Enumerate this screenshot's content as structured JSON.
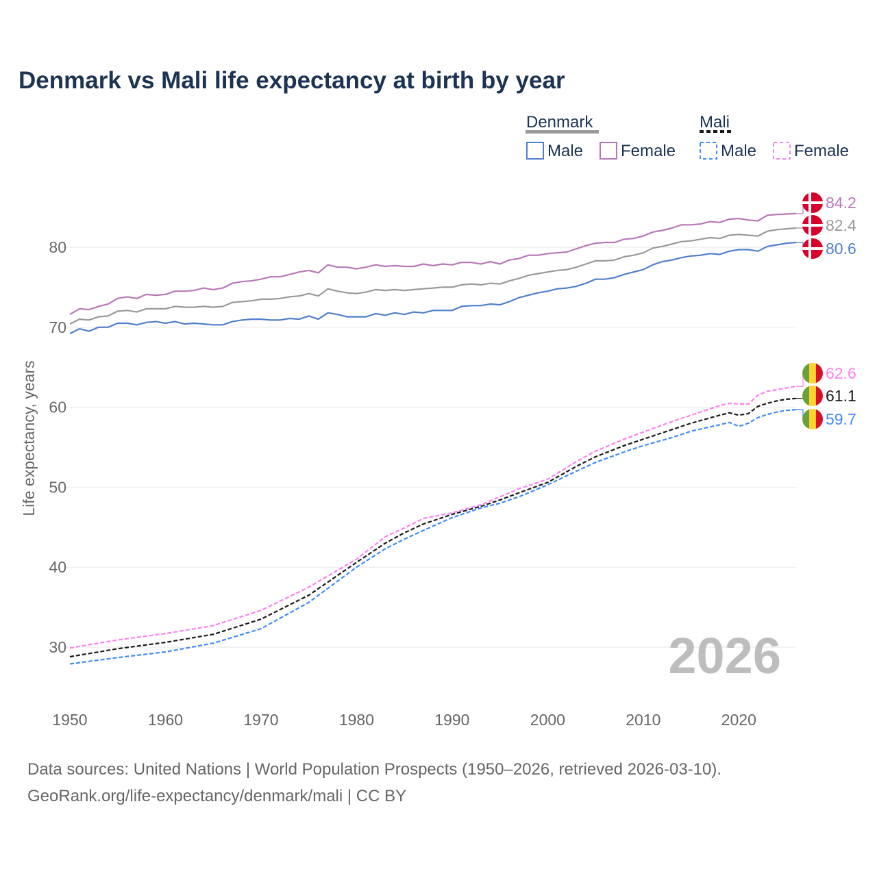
{
  "chart_data": {
    "type": "line",
    "title": "Denmark vs Mali life expectancy at birth by year",
    "xlabel": "",
    "ylabel": "Life expectancy, years",
    "xlim": [
      1950,
      2026
    ],
    "ylim": [
      24,
      87
    ],
    "x_ticks": [
      "1950",
      "1960",
      "1970",
      "1980",
      "1990",
      "2000",
      "2010",
      "2020"
    ],
    "y_ticks": [
      "30",
      "40",
      "50",
      "60",
      "70",
      "80"
    ],
    "grid": true,
    "year_watermark": "2026",
    "legend": {
      "placement": "top-right",
      "groups": [
        {
          "name": "Denmark",
          "items": [
            "Male",
            "Female"
          ]
        },
        {
          "name": "Mali",
          "items": [
            "Male",
            "Female"
          ]
        }
      ]
    },
    "series": [
      {
        "name": "Denmark Female",
        "color": "#b877b8",
        "dashed": false,
        "end_label": "84.2",
        "flag": "denmark",
        "x": [
          1950,
          1951,
          1952,
          1953,
          1954,
          1955,
          1956,
          1957,
          1958,
          1959,
          1960,
          1961,
          1962,
          1963,
          1964,
          1965,
          1966,
          1967,
          1968,
          1969,
          1970,
          1971,
          1972,
          1973,
          1974,
          1975,
          1976,
          1977,
          1978,
          1979,
          1980,
          1981,
          1982,
          1983,
          1984,
          1985,
          1986,
          1987,
          1988,
          1989,
          1990,
          1991,
          1992,
          1993,
          1994,
          1995,
          1996,
          1997,
          1998,
          1999,
          2000,
          2001,
          2002,
          2003,
          2004,
          2005,
          2006,
          2007,
          2008,
          2009,
          2010,
          2011,
          2012,
          2013,
          2014,
          2015,
          2016,
          2017,
          2018,
          2019,
          2020,
          2021,
          2022,
          2023,
          2024,
          2025,
          2026
        ],
        "values": [
          71.6,
          72.3,
          72.2,
          72.6,
          72.9,
          73.6,
          73.8,
          73.6,
          74.1,
          74.0,
          74.1,
          74.5,
          74.5,
          74.6,
          74.9,
          74.7,
          74.9,
          75.5,
          75.7,
          75.8,
          76.0,
          76.3,
          76.3,
          76.6,
          76.9,
          77.1,
          76.8,
          77.8,
          77.5,
          77.5,
          77.3,
          77.5,
          77.8,
          77.6,
          77.7,
          77.6,
          77.6,
          77.9,
          77.7,
          77.9,
          77.8,
          78.1,
          78.1,
          77.9,
          78.2,
          77.9,
          78.4,
          78.6,
          79.0,
          79.0,
          79.2,
          79.3,
          79.4,
          79.8,
          80.2,
          80.5,
          80.6,
          80.6,
          81.0,
          81.1,
          81.4,
          81.9,
          82.1,
          82.4,
          82.8,
          82.8,
          82.9,
          83.2,
          83.1,
          83.5,
          83.6,
          83.4,
          83.3,
          84.0,
          84.1,
          84.15,
          84.2
        ]
      },
      {
        "name": "Denmark",
        "color": "#999999",
        "dashed": false,
        "end_label": "82.4",
        "flag": "denmark",
        "x": [
          1950,
          1951,
          1952,
          1953,
          1954,
          1955,
          1956,
          1957,
          1958,
          1959,
          1960,
          1961,
          1962,
          1963,
          1964,
          1965,
          1966,
          1967,
          1968,
          1969,
          1970,
          1971,
          1972,
          1973,
          1974,
          1975,
          1976,
          1977,
          1978,
          1979,
          1980,
          1981,
          1982,
          1983,
          1984,
          1985,
          1986,
          1987,
          1988,
          1989,
          1990,
          1991,
          1992,
          1993,
          1994,
          1995,
          1996,
          1997,
          1998,
          1999,
          2000,
          2001,
          2002,
          2003,
          2004,
          2005,
          2006,
          2007,
          2008,
          2009,
          2010,
          2011,
          2012,
          2013,
          2014,
          2015,
          2016,
          2017,
          2018,
          2019,
          2020,
          2021,
          2022,
          2023,
          2024,
          2025,
          2026
        ],
        "values": [
          70.4,
          71.0,
          70.9,
          71.3,
          71.4,
          72.0,
          72.1,
          71.9,
          72.3,
          72.3,
          72.3,
          72.6,
          72.5,
          72.5,
          72.6,
          72.5,
          72.6,
          73.1,
          73.2,
          73.3,
          73.5,
          73.5,
          73.6,
          73.8,
          73.9,
          74.2,
          73.9,
          74.8,
          74.5,
          74.3,
          74.2,
          74.4,
          74.7,
          74.6,
          74.7,
          74.6,
          74.7,
          74.8,
          74.9,
          75.0,
          75.0,
          75.3,
          75.4,
          75.3,
          75.5,
          75.4,
          75.8,
          76.1,
          76.5,
          76.7,
          76.9,
          77.1,
          77.2,
          77.5,
          77.9,
          78.3,
          78.3,
          78.4,
          78.8,
          79.0,
          79.3,
          79.9,
          80.1,
          80.4,
          80.7,
          80.8,
          81.0,
          81.2,
          81.1,
          81.5,
          81.6,
          81.5,
          81.4,
          82.0,
          82.2,
          82.3,
          82.4
        ]
      },
      {
        "name": "Denmark Male",
        "color": "#4f7fcb",
        "dashed": false,
        "end_label": "80.6",
        "flag": "denmark",
        "x": [
          1950,
          1951,
          1952,
          1953,
          1954,
          1955,
          1956,
          1957,
          1958,
          1959,
          1960,
          1961,
          1962,
          1963,
          1964,
          1965,
          1966,
          1967,
          1968,
          1969,
          1970,
          1971,
          1972,
          1973,
          1974,
          1975,
          1976,
          1977,
          1978,
          1979,
          1980,
          1981,
          1982,
          1983,
          1984,
          1985,
          1986,
          1987,
          1988,
          1989,
          1990,
          1991,
          1992,
          1993,
          1994,
          1995,
          1996,
          1997,
          1998,
          1999,
          2000,
          2001,
          2002,
          2003,
          2004,
          2005,
          2006,
          2007,
          2008,
          2009,
          2010,
          2011,
          2012,
          2013,
          2014,
          2015,
          2016,
          2017,
          2018,
          2019,
          2020,
          2021,
          2022,
          2023,
          2024,
          2025,
          2026
        ],
        "values": [
          69.2,
          69.8,
          69.5,
          70.0,
          70.0,
          70.5,
          70.5,
          70.3,
          70.6,
          70.7,
          70.5,
          70.7,
          70.4,
          70.5,
          70.4,
          70.3,
          70.3,
          70.7,
          70.9,
          71.0,
          71.0,
          70.9,
          70.9,
          71.1,
          71.0,
          71.4,
          71.0,
          71.8,
          71.6,
          71.3,
          71.3,
          71.3,
          71.7,
          71.5,
          71.8,
          71.6,
          71.9,
          71.8,
          72.1,
          72.1,
          72.1,
          72.6,
          72.7,
          72.7,
          72.9,
          72.8,
          73.2,
          73.7,
          74.0,
          74.3,
          74.5,
          74.8,
          74.9,
          75.1,
          75.5,
          76.0,
          76.0,
          76.2,
          76.6,
          76.9,
          77.2,
          77.8,
          78.2,
          78.4,
          78.7,
          78.9,
          79.0,
          79.2,
          79.1,
          79.5,
          79.7,
          79.7,
          79.5,
          80.1,
          80.3,
          80.5,
          80.6
        ]
      },
      {
        "name": "Mali Female",
        "color": "#ff80f0",
        "dashed": true,
        "end_label": "62.6",
        "flag": "mali",
        "x": [
          1950,
          1955,
          1960,
          1965,
          1970,
          1975,
          1980,
          1983,
          1985,
          1987,
          1990,
          1993,
          1995,
          1997,
          2000,
          2003,
          2005,
          2008,
          2010,
          2013,
          2015,
          2018,
          2019,
          2020,
          2021,
          2022,
          2023,
          2024,
          2025,
          2026
        ],
        "values": [
          29.9,
          30.9,
          31.7,
          32.7,
          34.6,
          37.5,
          41.0,
          43.8,
          44.9,
          46.1,
          46.8,
          47.8,
          48.8,
          49.8,
          51.0,
          53.2,
          54.5,
          56.0,
          56.9,
          58.2,
          59.0,
          60.2,
          60.5,
          60.4,
          60.4,
          61.5,
          62.0,
          62.2,
          62.4,
          62.6
        ]
      },
      {
        "name": "Mali",
        "color": "#1a1a1a",
        "dashed": true,
        "end_label": "61.1",
        "flag": "mali",
        "x": [
          1950,
          1955,
          1960,
          1965,
          1970,
          1975,
          1980,
          1983,
          1985,
          1987,
          1990,
          1993,
          1995,
          1997,
          2000,
          2003,
          2005,
          2008,
          2010,
          2013,
          2015,
          2018,
          2019,
          2020,
          2021,
          2022,
          2023,
          2024,
          2025,
          2026
        ],
        "values": [
          28.8,
          29.8,
          30.6,
          31.6,
          33.5,
          36.5,
          40.6,
          43.0,
          44.3,
          45.4,
          46.6,
          47.6,
          48.4,
          49.3,
          50.6,
          52.6,
          53.8,
          55.2,
          56.0,
          57.2,
          58.0,
          59.0,
          59.3,
          59.0,
          59.2,
          60.1,
          60.5,
          60.8,
          61.0,
          61.1
        ]
      },
      {
        "name": "Mali Male",
        "color": "#3d8bff",
        "dashed": true,
        "end_label": "59.7",
        "flag": "mali",
        "x": [
          1950,
          1955,
          1960,
          1965,
          1970,
          1975,
          1980,
          1983,
          1985,
          1987,
          1990,
          1993,
          1995,
          1997,
          2000,
          2003,
          2005,
          2008,
          2010,
          2013,
          2015,
          2018,
          2019,
          2020,
          2021,
          2022,
          2023,
          2024,
          2025,
          2026
        ],
        "values": [
          27.9,
          28.7,
          29.4,
          30.5,
          32.3,
          35.6,
          40.0,
          42.3,
          43.5,
          44.6,
          46.2,
          47.4,
          48.0,
          48.8,
          50.3,
          52.0,
          53.1,
          54.4,
          55.2,
          56.2,
          57.0,
          57.8,
          58.1,
          57.6,
          58.0,
          58.7,
          59.1,
          59.4,
          59.6,
          59.7
        ]
      }
    ]
  },
  "footer": {
    "line1": "Data sources: United Nations | World Population Prospects (1950–2026, retrieved 2026-03-10).",
    "line2": "GeoRank.org/life-expectancy/denmark/mali | CC BY"
  }
}
